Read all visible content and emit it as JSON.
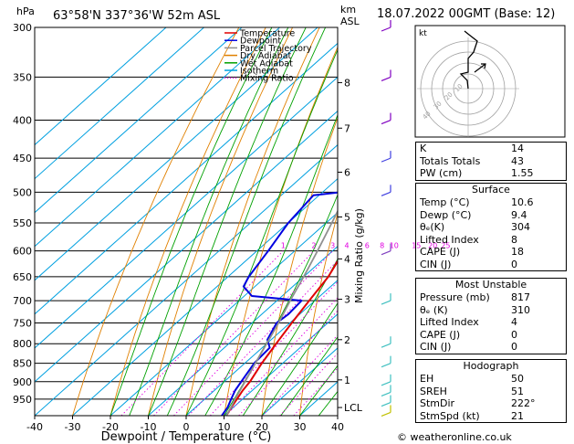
{
  "header": {
    "hpa_unit": "hPa",
    "location": "63°58'N  337°36'W  52m  ASL",
    "km_unit": "km",
    "asl_unit": "ASL",
    "valid": "18.07.2022  00GMT  (Base: 12)"
  },
  "legend": [
    {
      "label": "Temperature",
      "color": "#e00000"
    },
    {
      "label": "Dewpoint",
      "color": "#0000e0"
    },
    {
      "label": "Parcel Trajectory",
      "color": "#909090"
    },
    {
      "label": "Dry Adiabat",
      "color": "#e08000"
    },
    {
      "label": "Wet Adiabat",
      "color": "#00a000"
    },
    {
      "label": "Isotherm",
      "color": "#00a0e0"
    },
    {
      "label": "Mixing Ratio",
      "color": "#e000e0",
      "dotted": true
    }
  ],
  "chart_data": {
    "type": "line",
    "title": "",
    "xlabel": "Dewpoint / Temperature (°C)",
    "ylabel": "hPa",
    "y2label": "Mixing Ratio (g/kg)",
    "xlim": [
      -40,
      40
    ],
    "ylim": [
      300,
      1000
    ],
    "pressure_ticks": [
      300,
      350,
      400,
      450,
      500,
      550,
      600,
      650,
      700,
      750,
      800,
      850,
      900,
      950
    ],
    "temp_ticks": [
      -40,
      -30,
      -20,
      -10,
      0,
      10,
      20,
      30,
      40
    ],
    "km_ticks": [
      {
        "label": "8",
        "p": 356
      },
      {
        "label": "7",
        "p": 410
      },
      {
        "label": "6",
        "p": 470
      },
      {
        "label": "5",
        "p": 540
      },
      {
        "label": "4",
        "p": 615
      },
      {
        "label": "3",
        "p": 697
      },
      {
        "label": "2",
        "p": 790
      },
      {
        "label": "1",
        "p": 895
      },
      {
        "label": "LCL",
        "p": 975
      }
    ],
    "mixing_ratio_labels": [
      "1",
      "2",
      "3",
      "4",
      "6",
      "8",
      "10",
      "15",
      "20",
      "25"
    ],
    "mixing_ratio_values": [
      1,
      2,
      3,
      4,
      6,
      8,
      10,
      15,
      20,
      25
    ],
    "series": [
      {
        "name": "Temperature",
        "color": "#e00000",
        "points": [
          [
            1000,
            10.6
          ],
          [
            975,
            9.5
          ],
          [
            950,
            8.5
          ],
          [
            925,
            7.5
          ],
          [
            900,
            6.8
          ],
          [
            850,
            4.5
          ],
          [
            800,
            2.5
          ],
          [
            750,
            0.5
          ],
          [
            700,
            -1.5
          ],
          [
            650,
            -3.5
          ],
          [
            600,
            -7.0
          ],
          [
            550,
            -11.0
          ],
          [
            500,
            -16.0
          ],
          [
            450,
            -21.0
          ],
          [
            420,
            -23.0
          ],
          [
            400,
            -25.5
          ],
          [
            350,
            -33.0
          ],
          [
            300,
            -41.5
          ]
        ]
      },
      {
        "name": "Dewpoint",
        "color": "#0000e0",
        "points": [
          [
            1000,
            9.4
          ],
          [
            975,
            8.5
          ],
          [
            950,
            7.0
          ],
          [
            925,
            5.5
          ],
          [
            900,
            4.5
          ],
          [
            850,
            2.5
          ],
          [
            810,
            2.0
          ],
          [
            790,
            -1.0
          ],
          [
            750,
            -3.5
          ],
          [
            730,
            -3.0
          ],
          [
            700,
            -3.5
          ],
          [
            690,
            -18.0
          ],
          [
            670,
            -23.0
          ],
          [
            650,
            -24.5
          ],
          [
            600,
            -27.0
          ],
          [
            550,
            -30.0
          ],
          [
            505,
            -31.5
          ],
          [
            500,
            -25.0
          ],
          [
            490,
            -23.0
          ],
          [
            485,
            -26.5
          ],
          [
            470,
            -25.0
          ],
          [
            460,
            -28.0
          ],
          [
            450,
            -32.0
          ],
          [
            445,
            -28.0
          ],
          [
            430,
            -24.0
          ],
          [
            400,
            -29.0
          ],
          [
            350,
            -36.5
          ],
          [
            300,
            -44.5
          ]
        ]
      },
      {
        "name": "Parcel Trajectory",
        "color": "#909090",
        "points": [
          [
            1000,
            10.6
          ],
          [
            975,
            9.4
          ],
          [
            950,
            8.0
          ],
          [
            900,
            5.5
          ],
          [
            850,
            2.8
          ],
          [
            800,
            0.0
          ],
          [
            750,
            -3.0
          ],
          [
            700,
            -6.5
          ],
          [
            650,
            -10.0
          ],
          [
            600,
            -14.0
          ],
          [
            550,
            -18.5
          ],
          [
            500,
            -23.5
          ],
          [
            450,
            -29.0
          ],
          [
            400,
            -35.0
          ],
          [
            350,
            -42.0
          ],
          [
            300,
            -50.0
          ]
        ]
      }
    ]
  },
  "hodograph": {
    "label": "kt",
    "ring_labels": [
      "40",
      "30",
      "20",
      "10"
    ]
  },
  "indices": {
    "k_label": "K",
    "k_value": "14",
    "tt_label": "Totals Totals",
    "tt_value": "43",
    "pw_label": "PW (cm)",
    "pw_value": "1.55"
  },
  "surface": {
    "title": "Surface",
    "rows": [
      {
        "label": "Temp (°C)",
        "value": "10.6"
      },
      {
        "label": "Dewp (°C)",
        "value": "9.4"
      },
      {
        "label": "θₑ(K)",
        "value": "304"
      },
      {
        "label": "Lifted Index",
        "value": "8"
      },
      {
        "label": "CAPE (J)",
        "value": "18"
      },
      {
        "label": "CIN (J)",
        "value": "0"
      }
    ]
  },
  "most_unstable": {
    "title": "Most Unstable",
    "rows": [
      {
        "label": "Pressure (mb)",
        "value": "817"
      },
      {
        "label": "θₑ (K)",
        "value": "310"
      },
      {
        "label": "Lifted Index",
        "value": "4"
      },
      {
        "label": "CAPE (J)",
        "value": "0"
      },
      {
        "label": "CIN (J)",
        "value": "0"
      }
    ]
  },
  "hodograph_table": {
    "title": "Hodograph",
    "rows": [
      {
        "label": "EH",
        "value": "50"
      },
      {
        "label": "SREH",
        "value": "51"
      },
      {
        "label": "StmDir",
        "value": "222°"
      },
      {
        "label": "StmSpd (kt)",
        "value": "21"
      }
    ]
  },
  "footer": {
    "copyright": "© weatheronline.co.uk"
  }
}
